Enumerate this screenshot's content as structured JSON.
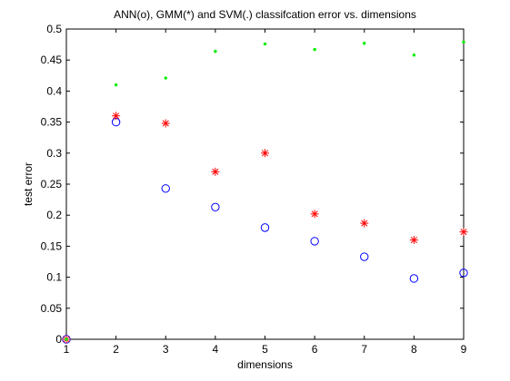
{
  "chart_data": {
    "type": "scatter",
    "title": "ANN(o), GMM(*) and SVM(.) classifcation error vs. dimensions",
    "xlabel": "dimensions",
    "ylabel": "test error",
    "xlim": [
      1,
      9
    ],
    "ylim": [
      0,
      0.5
    ],
    "xticks": [
      "1",
      "2",
      "3",
      "4",
      "5",
      "6",
      "7",
      "8",
      "9"
    ],
    "yticks": [
      "0",
      "0.05",
      "0.1",
      "0.15",
      "0.2",
      "0.25",
      "0.3",
      "0.35",
      "0.4",
      "0.45",
      "0.5"
    ],
    "grid": false,
    "series": [
      {
        "marker": "circle",
        "color": "#0000ff",
        "x": [
          1,
          2,
          3,
          4,
          5,
          6,
          7,
          8,
          9
        ],
        "y": [
          0,
          0.35,
          0.243,
          0.213,
          0.18,
          0.158,
          0.133,
          0.098,
          0.107
        ]
      },
      {
        "marker": "asterisk",
        "color": "#ff0000",
        "x": [
          1,
          2,
          3,
          4,
          5,
          6,
          7,
          8,
          9
        ],
        "y": [
          0,
          0.36,
          0.348,
          0.27,
          0.3,
          0.202,
          0.187,
          0.16,
          0.173
        ]
      },
      {
        "marker": "dot",
        "color": "#00ee00",
        "x": [
          1,
          2,
          3,
          4,
          5,
          6,
          7,
          8,
          9
        ],
        "y": [
          0,
          0.41,
          0.421,
          0.464,
          0.476,
          0.467,
          0.477,
          0.458,
          0.479
        ]
      }
    ]
  }
}
